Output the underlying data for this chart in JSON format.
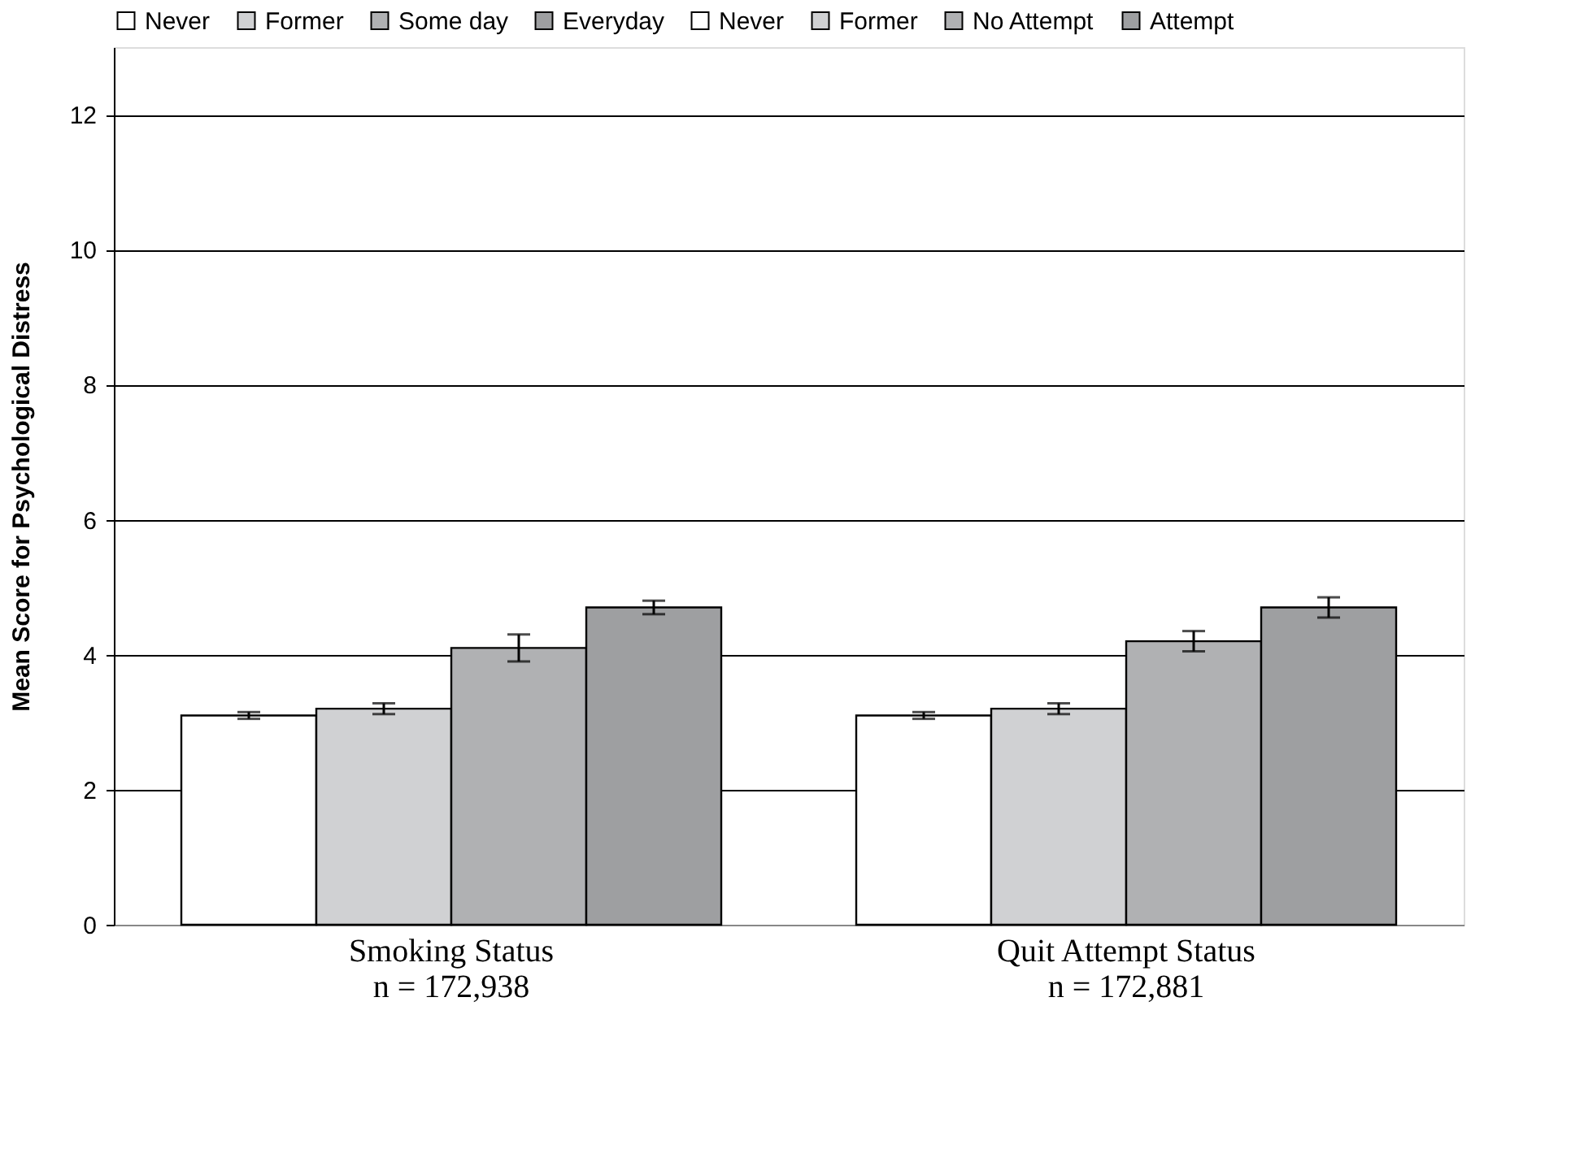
{
  "chart_data": {
    "type": "bar",
    "categories": [
      "Smoking Status\nn = 172,938",
      "Quit Attempt Status\nn = 172,881"
    ],
    "ylabel": "Mean Score for Psychological Distress",
    "series": [
      {
        "name": "Never",
        "color": "#ffffff",
        "values": [
          3.1,
          null
        ],
        "errors": [
          0.05,
          null
        ]
      },
      {
        "name": "Former",
        "color": "#d0d1d3",
        "values": [
          3.2,
          null
        ],
        "errors": [
          0.08,
          null
        ]
      },
      {
        "name": "Some day",
        "color": "#b0b1b3",
        "values": [
          4.1,
          null
        ],
        "errors": [
          0.2,
          null
        ]
      },
      {
        "name": "Everyday",
        "color": "#9e9fa1",
        "values": [
          4.7,
          null
        ],
        "errors": [
          0.1,
          null
        ]
      },
      {
        "name": "Never",
        "color": "#ffffff",
        "values": [
          null,
          3.1
        ],
        "errors": [
          null,
          0.05
        ]
      },
      {
        "name": "Former",
        "color": "#d0d1d3",
        "values": [
          null,
          3.2
        ],
        "errors": [
          null,
          0.08
        ]
      },
      {
        "name": "No Attempt",
        "color": "#b0b1b3",
        "values": [
          null,
          4.2
        ],
        "errors": [
          null,
          0.15
        ]
      },
      {
        "name": "Attempt",
        "color": "#9e9fa1",
        "values": [
          null,
          4.7
        ],
        "errors": [
          null,
          0.15
        ]
      }
    ],
    "ylim": [
      0,
      13
    ],
    "yticks": [
      0,
      2,
      4,
      6,
      8,
      10,
      12
    ],
    "grid": "y",
    "legend": "top"
  }
}
